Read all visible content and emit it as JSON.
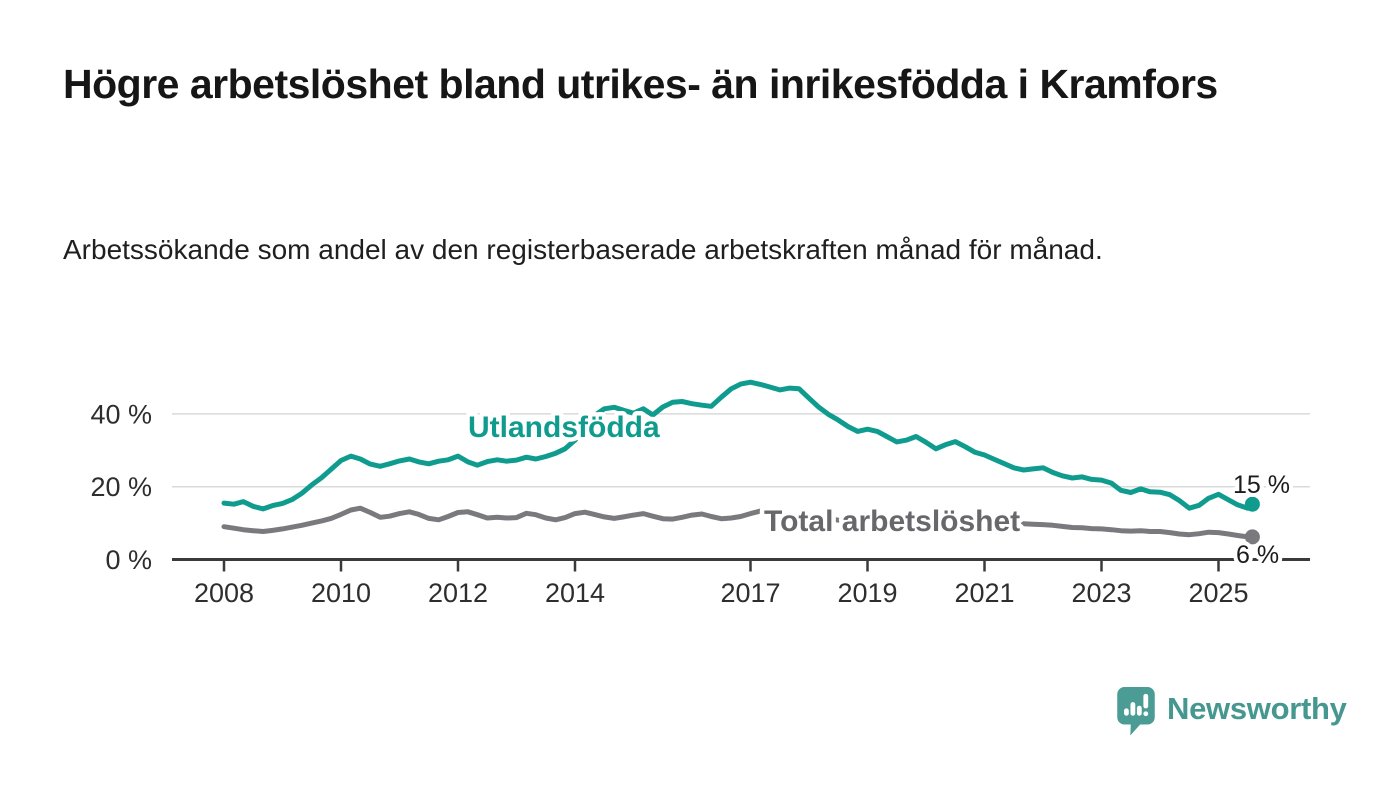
{
  "header": {
    "title": "Högre arbetslöshet bland utrikes- än inrikesfödda i Kramfors",
    "subtitle": "Arbetssökande som andel av den registerbaserade arbetskraften månad för månad."
  },
  "branding": {
    "logo_text": "Newsworthy",
    "logo_color": "#4a9c95"
  },
  "colors": {
    "grid": "#dadada",
    "axis": "#3a3a3a",
    "background": "#ffffff"
  },
  "chart_data": {
    "type": "line",
    "unit": "percent of registered labour force",
    "x_axis": {
      "tick_years": [
        2008,
        2010,
        2012,
        2014,
        2017,
        2019,
        2021,
        2023,
        2025
      ],
      "range": [
        2007.1,
        2026.6
      ]
    },
    "y_axis": {
      "ticks": [
        0,
        20,
        40
      ],
      "suffix": " %",
      "range": [
        0,
        55
      ],
      "grid": true
    },
    "series": [
      {
        "id": "utlandsfodda",
        "name": "Utlandsfödda",
        "color": "#0f9c8f",
        "label_color": "#0f9c8f",
        "end_label": "15 %",
        "points": [
          [
            2008.0,
            15.5
          ],
          [
            2008.17,
            15.2
          ],
          [
            2008.33,
            15.9
          ],
          [
            2008.5,
            14.6
          ],
          [
            2008.67,
            13.9
          ],
          [
            2008.83,
            14.8
          ],
          [
            2009.0,
            15.4
          ],
          [
            2009.17,
            16.5
          ],
          [
            2009.33,
            18.2
          ],
          [
            2009.5,
            20.5
          ],
          [
            2009.67,
            22.5
          ],
          [
            2009.83,
            24.8
          ],
          [
            2010.0,
            27.2
          ],
          [
            2010.17,
            28.4
          ],
          [
            2010.33,
            27.6
          ],
          [
            2010.5,
            26.2
          ],
          [
            2010.67,
            25.6
          ],
          [
            2010.83,
            26.3
          ],
          [
            2011.0,
            27.1
          ],
          [
            2011.17,
            27.6
          ],
          [
            2011.33,
            26.8
          ],
          [
            2011.5,
            26.3
          ],
          [
            2011.67,
            27.0
          ],
          [
            2011.83,
            27.4
          ],
          [
            2012.0,
            28.4
          ],
          [
            2012.17,
            26.8
          ],
          [
            2012.33,
            25.9
          ],
          [
            2012.5,
            26.9
          ],
          [
            2012.67,
            27.4
          ],
          [
            2012.83,
            27.0
          ],
          [
            2013.0,
            27.3
          ],
          [
            2013.17,
            28.1
          ],
          [
            2013.33,
            27.6
          ],
          [
            2013.5,
            28.3
          ],
          [
            2013.67,
            29.2
          ],
          [
            2013.83,
            30.4
          ],
          [
            2014.0,
            32.8
          ],
          [
            2014.17,
            36.0
          ],
          [
            2014.33,
            39.5
          ],
          [
            2014.5,
            41.4
          ],
          [
            2014.67,
            41.8
          ],
          [
            2014.83,
            41.0
          ],
          [
            2015.0,
            40.2
          ],
          [
            2015.17,
            41.4
          ],
          [
            2015.33,
            39.7
          ],
          [
            2015.5,
            41.9
          ],
          [
            2015.67,
            43.2
          ],
          [
            2015.83,
            43.4
          ],
          [
            2016.0,
            42.8
          ],
          [
            2016.17,
            42.4
          ],
          [
            2016.33,
            42.1
          ],
          [
            2016.5,
            44.6
          ],
          [
            2016.67,
            46.9
          ],
          [
            2016.83,
            48.2
          ],
          [
            2017.0,
            48.7
          ],
          [
            2017.17,
            48.1
          ],
          [
            2017.33,
            47.4
          ],
          [
            2017.5,
            46.6
          ],
          [
            2017.67,
            47.1
          ],
          [
            2017.83,
            46.9
          ],
          [
            2018.0,
            44.3
          ],
          [
            2018.17,
            41.8
          ],
          [
            2018.33,
            39.9
          ],
          [
            2018.5,
            38.3
          ],
          [
            2018.67,
            36.5
          ],
          [
            2018.83,
            35.2
          ],
          [
            2019.0,
            35.8
          ],
          [
            2019.17,
            35.2
          ],
          [
            2019.33,
            33.8
          ],
          [
            2019.5,
            32.3
          ],
          [
            2019.67,
            32.8
          ],
          [
            2019.83,
            33.8
          ],
          [
            2020.0,
            32.2
          ],
          [
            2020.17,
            30.4
          ],
          [
            2020.33,
            31.5
          ],
          [
            2020.5,
            32.4
          ],
          [
            2020.67,
            31.0
          ],
          [
            2020.83,
            29.5
          ],
          [
            2021.0,
            28.7
          ],
          [
            2021.17,
            27.5
          ],
          [
            2021.33,
            26.4
          ],
          [
            2021.5,
            25.2
          ],
          [
            2021.67,
            24.6
          ],
          [
            2021.83,
            24.9
          ],
          [
            2022.0,
            25.2
          ],
          [
            2022.17,
            23.9
          ],
          [
            2022.33,
            23.0
          ],
          [
            2022.5,
            22.4
          ],
          [
            2022.67,
            22.7
          ],
          [
            2022.83,
            22.0
          ],
          [
            2023.0,
            21.8
          ],
          [
            2023.17,
            21.0
          ],
          [
            2023.33,
            19.0
          ],
          [
            2023.5,
            18.4
          ],
          [
            2023.67,
            19.4
          ],
          [
            2023.83,
            18.6
          ],
          [
            2024.0,
            18.5
          ],
          [
            2024.17,
            17.8
          ],
          [
            2024.33,
            16.2
          ],
          [
            2024.5,
            14.1
          ],
          [
            2024.67,
            14.9
          ],
          [
            2024.83,
            16.8
          ],
          [
            2025.0,
            17.9
          ],
          [
            2025.17,
            16.4
          ],
          [
            2025.33,
            15.0
          ],
          [
            2025.5,
            14.1
          ],
          [
            2025.58,
            15.2
          ]
        ]
      },
      {
        "id": "total",
        "name": "Total arbetslöshet",
        "color": "#7a7a7e",
        "label_color": "#67676c",
        "end_label": "6 %",
        "points": [
          [
            2008.0,
            9.0
          ],
          [
            2008.17,
            8.6
          ],
          [
            2008.33,
            8.2
          ],
          [
            2008.5,
            7.9
          ],
          [
            2008.67,
            7.7
          ],
          [
            2008.83,
            8.0
          ],
          [
            2009.0,
            8.4
          ],
          [
            2009.17,
            8.9
          ],
          [
            2009.33,
            9.4
          ],
          [
            2009.5,
            10.0
          ],
          [
            2009.67,
            10.6
          ],
          [
            2009.83,
            11.3
          ],
          [
            2010.0,
            12.4
          ],
          [
            2010.17,
            13.6
          ],
          [
            2010.33,
            14.1
          ],
          [
            2010.5,
            12.9
          ],
          [
            2010.67,
            11.6
          ],
          [
            2010.83,
            11.9
          ],
          [
            2011.0,
            12.6
          ],
          [
            2011.17,
            13.1
          ],
          [
            2011.33,
            12.4
          ],
          [
            2011.5,
            11.3
          ],
          [
            2011.67,
            10.9
          ],
          [
            2011.83,
            11.8
          ],
          [
            2012.0,
            12.9
          ],
          [
            2012.17,
            13.1
          ],
          [
            2012.33,
            12.3
          ],
          [
            2012.5,
            11.4
          ],
          [
            2012.67,
            11.6
          ],
          [
            2012.83,
            11.4
          ],
          [
            2013.0,
            11.5
          ],
          [
            2013.17,
            12.7
          ],
          [
            2013.33,
            12.3
          ],
          [
            2013.5,
            11.4
          ],
          [
            2013.67,
            10.9
          ],
          [
            2013.83,
            11.5
          ],
          [
            2014.0,
            12.6
          ],
          [
            2014.17,
            13.0
          ],
          [
            2014.33,
            12.4
          ],
          [
            2014.5,
            11.7
          ],
          [
            2014.67,
            11.3
          ],
          [
            2014.83,
            11.7
          ],
          [
            2015.0,
            12.2
          ],
          [
            2015.17,
            12.6
          ],
          [
            2015.33,
            11.9
          ],
          [
            2015.5,
            11.2
          ],
          [
            2015.67,
            11.1
          ],
          [
            2015.83,
            11.6
          ],
          [
            2016.0,
            12.2
          ],
          [
            2016.17,
            12.5
          ],
          [
            2016.33,
            11.8
          ],
          [
            2016.5,
            11.2
          ],
          [
            2016.67,
            11.4
          ],
          [
            2016.83,
            11.8
          ],
          [
            2017.0,
            12.6
          ],
          [
            2017.17,
            13.3
          ],
          [
            2017.33,
            13.4
          ],
          [
            2017.5,
            12.6
          ],
          [
            2017.67,
            11.9
          ],
          [
            2017.83,
            11.7
          ],
          [
            2018.0,
            11.9
          ],
          [
            2018.17,
            11.8
          ],
          [
            2018.33,
            11.3
          ],
          [
            2018.5,
            10.8
          ],
          [
            2018.67,
            10.7
          ],
          [
            2018.83,
            11.0
          ],
          [
            2019.0,
            11.4
          ],
          [
            2019.17,
            11.2
          ],
          [
            2019.33,
            10.9
          ],
          [
            2019.5,
            10.7
          ],
          [
            2019.67,
            10.9
          ],
          [
            2019.83,
            11.1
          ],
          [
            2020.0,
            11.2
          ],
          [
            2020.17,
            11.6
          ],
          [
            2020.33,
            12.0
          ],
          [
            2020.5,
            12.1
          ],
          [
            2020.67,
            11.7
          ],
          [
            2020.83,
            11.3
          ],
          [
            2021.0,
            11.0
          ],
          [
            2021.17,
            10.8
          ],
          [
            2021.33,
            10.4
          ],
          [
            2021.5,
            10.1
          ],
          [
            2021.67,
            9.8
          ],
          [
            2021.83,
            9.7
          ],
          [
            2022.0,
            9.6
          ],
          [
            2022.17,
            9.4
          ],
          [
            2022.33,
            9.1
          ],
          [
            2022.5,
            8.8
          ],
          [
            2022.67,
            8.7
          ],
          [
            2022.83,
            8.5
          ],
          [
            2023.0,
            8.4
          ],
          [
            2023.17,
            8.2
          ],
          [
            2023.33,
            7.9
          ],
          [
            2023.5,
            7.8
          ],
          [
            2023.67,
            7.9
          ],
          [
            2023.83,
            7.7
          ],
          [
            2024.0,
            7.7
          ],
          [
            2024.17,
            7.4
          ],
          [
            2024.33,
            7.0
          ],
          [
            2024.5,
            6.8
          ],
          [
            2024.67,
            7.1
          ],
          [
            2024.83,
            7.5
          ],
          [
            2025.0,
            7.4
          ],
          [
            2025.17,
            7.0
          ],
          [
            2025.33,
            6.6
          ],
          [
            2025.5,
            6.2
          ],
          [
            2025.58,
            6.2
          ]
        ]
      }
    ]
  }
}
